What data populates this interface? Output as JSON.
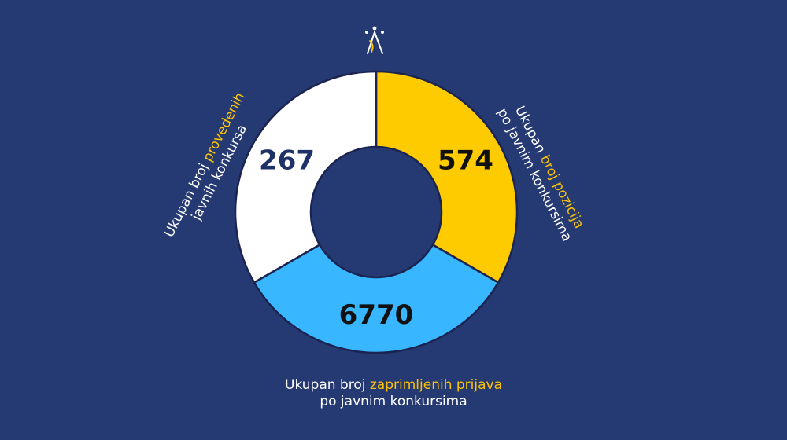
{
  "chart_data": {
    "type": "pie",
    "variant": "donut",
    "slices": [
      {
        "value": 574,
        "value_label": "574",
        "color": "#fecb00",
        "text_color": "#111111",
        "label_plain": "Ukupan ",
        "label_highlight": "broj pozicija",
        "label_line2": "po javnim konkursima"
      },
      {
        "value": 6770,
        "value_label": "6770",
        "color": "#38b6ff",
        "text_color": "#111111",
        "label_plain": "Ukupan broj ",
        "label_highlight": "zaprimljenih prijava",
        "label_line2": "po javnim konkursima"
      },
      {
        "value": 267,
        "value_label": "267",
        "color": "#ffffff",
        "text_color": "#1d3266",
        "label_plain": "Ukupan broj ",
        "label_highlight": "provedenih",
        "label_line2": "javnih konkursa"
      }
    ],
    "highlight_color": "#fdc300"
  },
  "logo": {
    "icon": "three-figures-logo-icon"
  }
}
